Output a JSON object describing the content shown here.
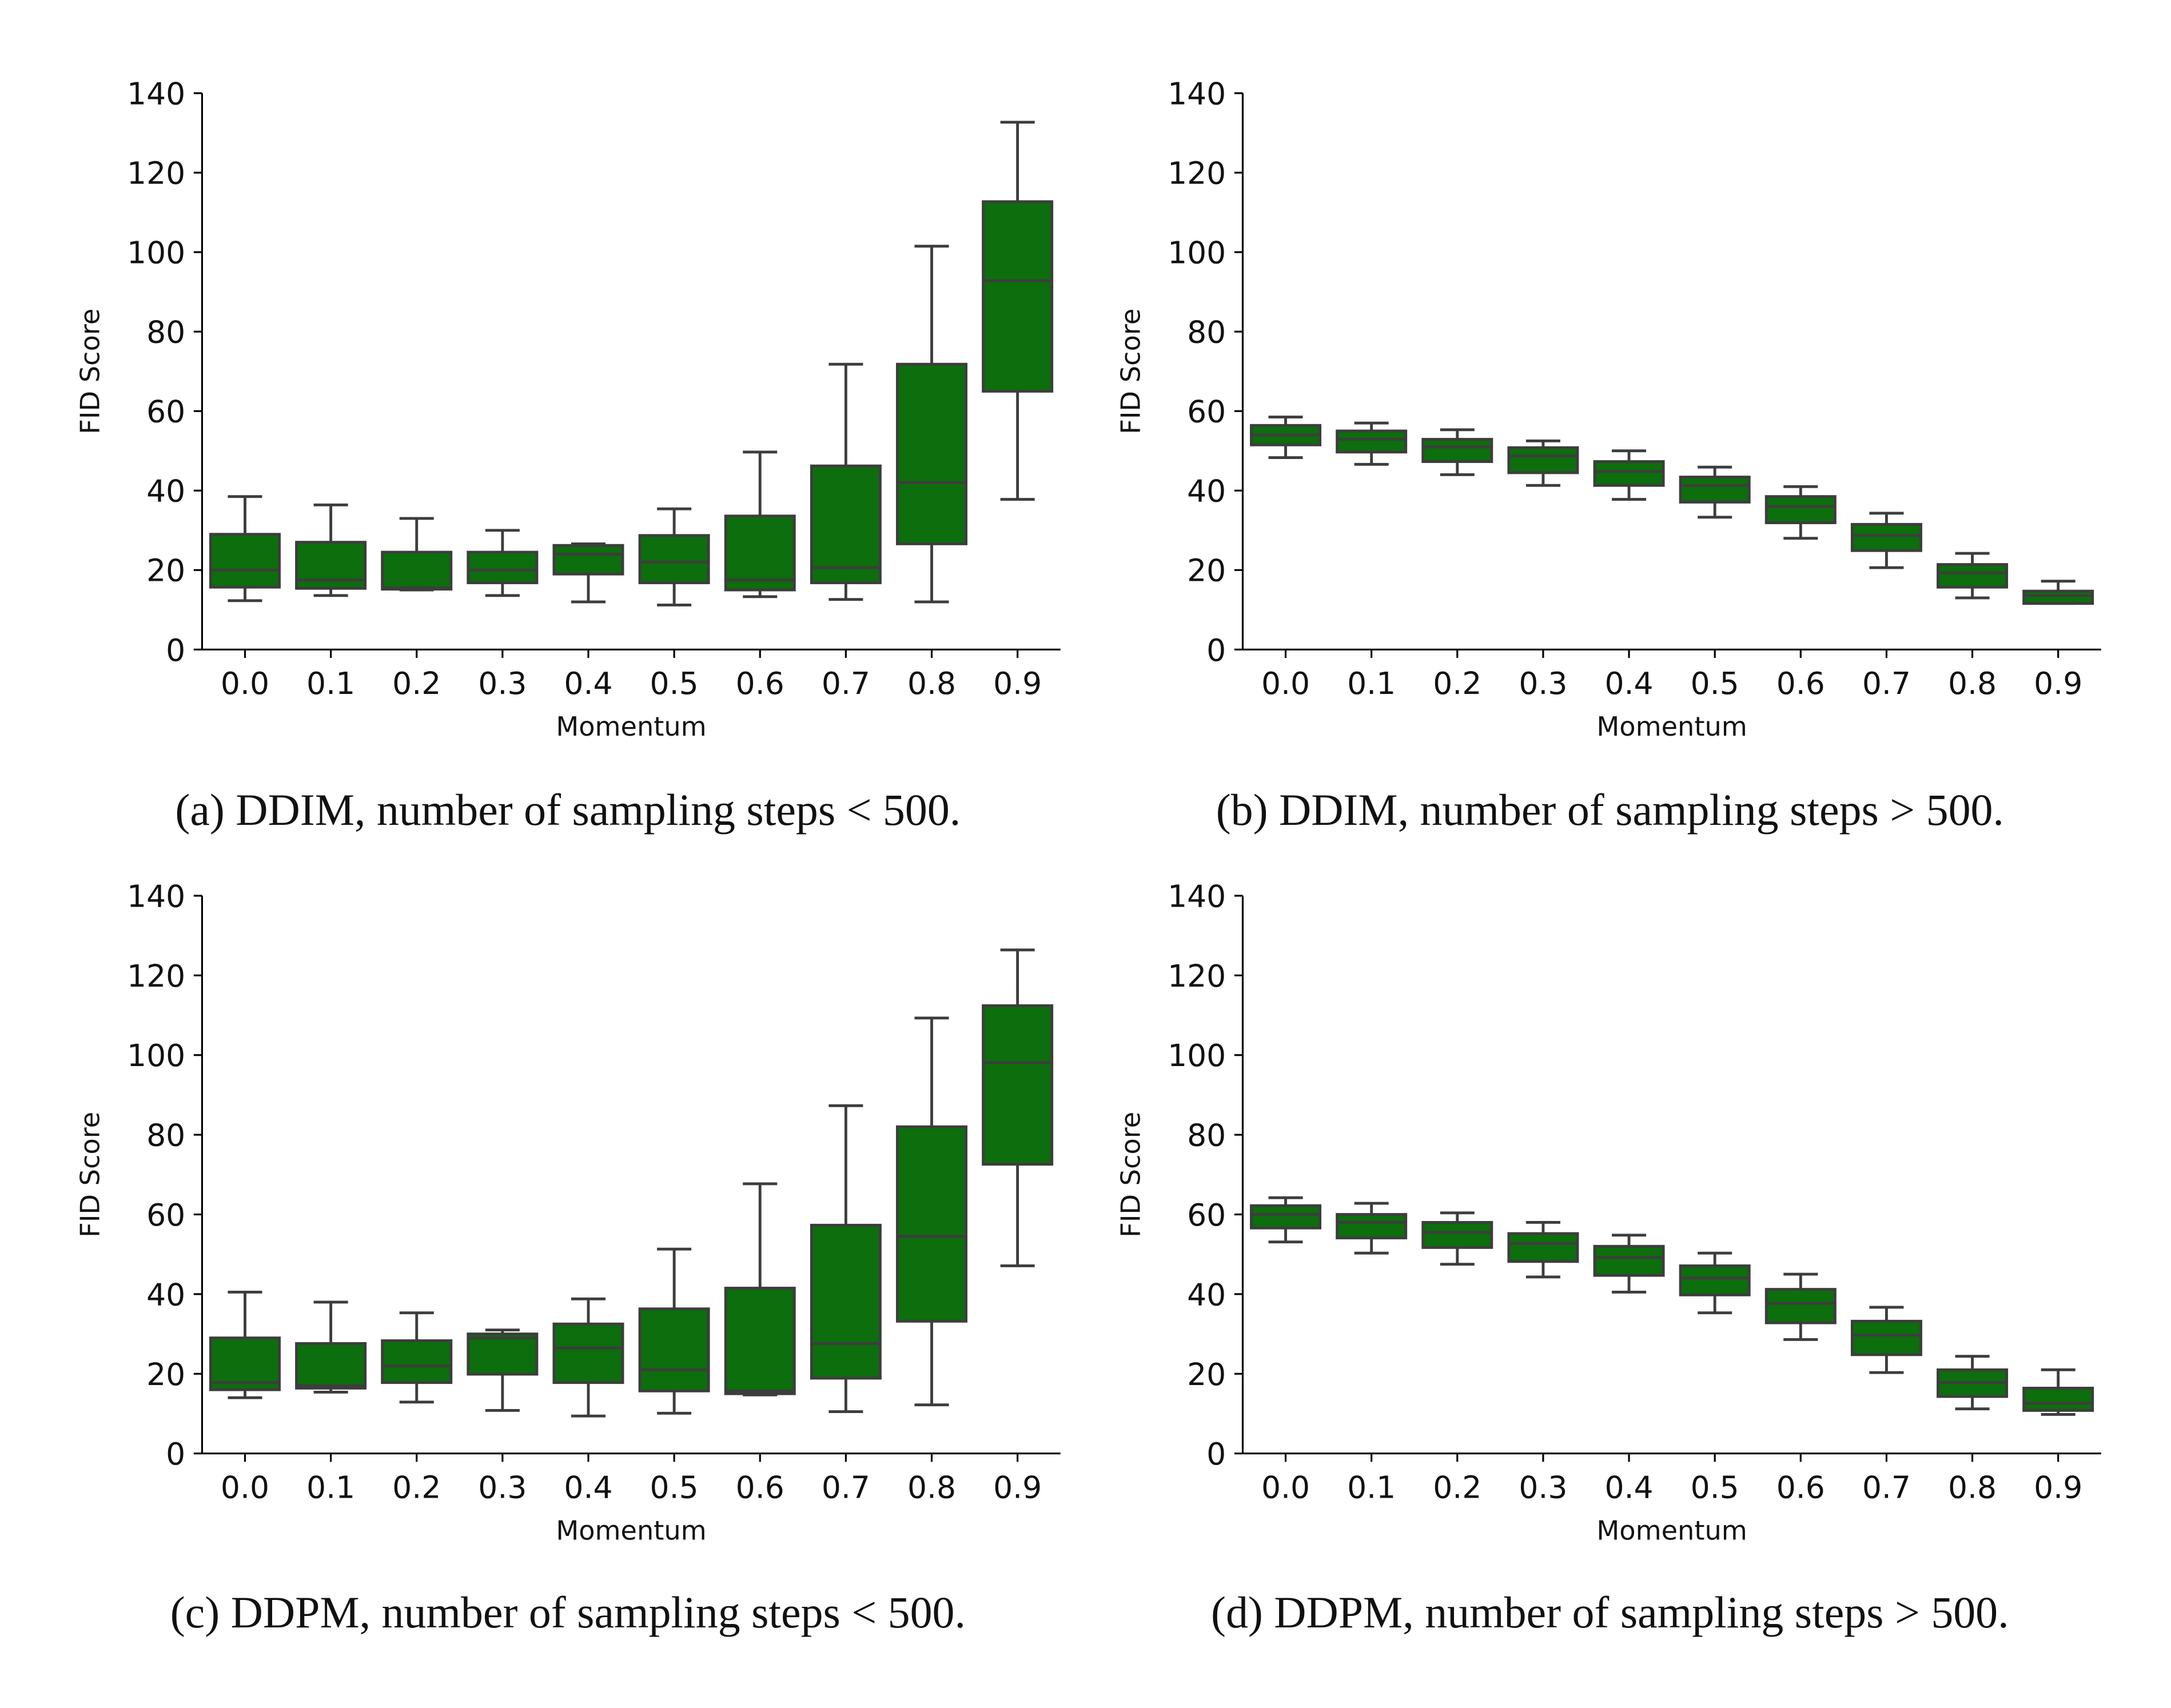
{
  "style": {
    "box_fill": "#0c6e0c",
    "line_color": "#3d3d3d"
  },
  "chart_data": [
    {
      "type": "box",
      "caption": "(a) DDIM, number of sampling steps < 500.",
      "xlabel": "Momentum",
      "ylabel": "FID Score",
      "ylim": [
        0,
        140
      ],
      "yticks": [
        0,
        20,
        40,
        60,
        80,
        100,
        120,
        140
      ],
      "grid": false,
      "categories": [
        "0.0",
        "0.1",
        "0.2",
        "0.3",
        "0.4",
        "0.5",
        "0.6",
        "0.7",
        "0.8",
        "0.9"
      ],
      "boxes": [
        {
          "low": 12.3,
          "q1": 15.7,
          "median": 20,
          "q3": 29,
          "high": 38.5
        },
        {
          "low": 13.6,
          "q1": 15.4,
          "median": 17.5,
          "q3": 27,
          "high": 36.4
        },
        {
          "low": 15,
          "q1": 15.2,
          "median": 15.5,
          "q3": 24.5,
          "high": 33
        },
        {
          "low": 13.6,
          "q1": 16.8,
          "median": 20,
          "q3": 24.5,
          "high": 30
        },
        {
          "low": 12,
          "q1": 19,
          "median": 24,
          "q3": 26.2,
          "high": 26.6
        },
        {
          "low": 11.2,
          "q1": 16.8,
          "median": 22,
          "q3": 28.7,
          "high": 35.4
        },
        {
          "low": 13.3,
          "q1": 15,
          "median": 17.5,
          "q3": 33.6,
          "high": 49.7
        },
        {
          "low": 12.6,
          "q1": 16.8,
          "median": 20.6,
          "q3": 46.2,
          "high": 71.8
        },
        {
          "low": 12,
          "q1": 26.6,
          "median": 42,
          "q3": 71.8,
          "high": 101.5
        },
        {
          "low": 37.8,
          "q1": 65,
          "median": 92.8,
          "q3": 112.7,
          "high": 132.7
        }
      ]
    },
    {
      "type": "box",
      "caption": "(b) DDIM, number of sampling steps > 500.",
      "xlabel": "Momentum",
      "ylabel": "FID Score",
      "ylim": [
        0,
        140
      ],
      "yticks": [
        0,
        20,
        40,
        60,
        80,
        100,
        120,
        140
      ],
      "grid": false,
      "categories": [
        "0.0",
        "0.1",
        "0.2",
        "0.3",
        "0.4",
        "0.5",
        "0.6",
        "0.7",
        "0.8",
        "0.9"
      ],
      "boxes": [
        {
          "low": 48.3,
          "q1": 51.5,
          "median": 54,
          "q3": 56.4,
          "high": 58.5
        },
        {
          "low": 46.6,
          "q1": 49.7,
          "median": 52.9,
          "q3": 55,
          "high": 57
        },
        {
          "low": 44,
          "q1": 47.3,
          "median": 51,
          "q3": 52.9,
          "high": 55.3
        },
        {
          "low": 41.3,
          "q1": 44.5,
          "median": 48.7,
          "q3": 50.8,
          "high": 52.5
        },
        {
          "low": 37.8,
          "q1": 41.3,
          "median": 44.8,
          "q3": 47.3,
          "high": 50
        },
        {
          "low": 33.3,
          "q1": 37.1,
          "median": 41.3,
          "q3": 43.4,
          "high": 45.9
        },
        {
          "low": 28,
          "q1": 31.9,
          "median": 36,
          "q3": 38.5,
          "high": 41
        },
        {
          "low": 20.6,
          "q1": 24.9,
          "median": 28.7,
          "q3": 31.5,
          "high": 34.3
        },
        {
          "low": 13,
          "q1": 15.7,
          "median": 19.3,
          "q3": 21.4,
          "high": 24.2
        },
        {
          "low": 11.6,
          "q1": 11.6,
          "median": 13.6,
          "q3": 14.7,
          "high": 17.2
        }
      ]
    },
    {
      "type": "box",
      "caption": "(c) DDPM, number of sampling steps < 500.",
      "xlabel": "Momentum",
      "ylabel": "FID Score",
      "ylim": [
        0,
        140
      ],
      "yticks": [
        0,
        20,
        40,
        60,
        80,
        100,
        120,
        140
      ],
      "grid": false,
      "categories": [
        "0.0",
        "0.1",
        "0.2",
        "0.3",
        "0.4",
        "0.5",
        "0.6",
        "0.7",
        "0.8",
        "0.9"
      ],
      "boxes": [
        {
          "low": 14,
          "q1": 16,
          "median": 17.8,
          "q3": 29,
          "high": 40.5
        },
        {
          "low": 15.4,
          "q1": 16.4,
          "median": 17,
          "q3": 27.6,
          "high": 38
        },
        {
          "low": 12.9,
          "q1": 17.8,
          "median": 22,
          "q3": 28.3,
          "high": 35.3
        },
        {
          "low": 10.8,
          "q1": 19.9,
          "median": 29,
          "q3": 30,
          "high": 31
        },
        {
          "low": 9.4,
          "q1": 17.8,
          "median": 26.5,
          "q3": 32.5,
          "high": 38.8
        },
        {
          "low": 10.1,
          "q1": 15.7,
          "median": 21,
          "q3": 36.3,
          "high": 51.3
        },
        {
          "low": 14.7,
          "q1": 15,
          "median": 15.7,
          "q3": 41.5,
          "high": 67.7
        },
        {
          "low": 10.5,
          "q1": 18.9,
          "median": 27.6,
          "q3": 57.3,
          "high": 87.3
        },
        {
          "low": 12.2,
          "q1": 33.2,
          "median": 54.5,
          "q3": 82,
          "high": 109.3
        },
        {
          "low": 47.1,
          "q1": 72.6,
          "median": 98.1,
          "q3": 112.4,
          "high": 126.4
        }
      ]
    },
    {
      "type": "box",
      "caption": "(d) DDPM, number of sampling steps > 500.",
      "xlabel": "Momentum",
      "ylabel": "FID Score",
      "ylim": [
        0,
        140
      ],
      "yticks": [
        0,
        20,
        40,
        60,
        80,
        100,
        120,
        140
      ],
      "grid": false,
      "categories": [
        "0.0",
        "0.1",
        "0.2",
        "0.3",
        "0.4",
        "0.5",
        "0.6",
        "0.7",
        "0.8",
        "0.9"
      ],
      "boxes": [
        {
          "low": 53.1,
          "q1": 56.6,
          "median": 60,
          "q3": 62.2,
          "high": 64.2
        },
        {
          "low": 50.3,
          "q1": 54.1,
          "median": 58,
          "q3": 60,
          "high": 62.8
        },
        {
          "low": 47.5,
          "q1": 51.7,
          "median": 55.5,
          "q3": 58,
          "high": 60.4
        },
        {
          "low": 44.3,
          "q1": 48.2,
          "median": 52.7,
          "q3": 55.2,
          "high": 58
        },
        {
          "low": 40.5,
          "q1": 44.7,
          "median": 49.2,
          "q3": 52,
          "high": 54.8
        },
        {
          "low": 35.3,
          "q1": 39.8,
          "median": 44,
          "q3": 47.1,
          "high": 50.3
        },
        {
          "low": 28.6,
          "q1": 32.8,
          "median": 37.7,
          "q3": 41.2,
          "high": 45
        },
        {
          "low": 20.3,
          "q1": 24.8,
          "median": 29.7,
          "q3": 33.2,
          "high": 36.7
        },
        {
          "low": 11.2,
          "q1": 14.3,
          "median": 17.8,
          "q3": 21,
          "high": 24.4
        },
        {
          "low": 9.8,
          "q1": 10.8,
          "median": 12.6,
          "q3": 16.4,
          "high": 21
        }
      ]
    }
  ]
}
